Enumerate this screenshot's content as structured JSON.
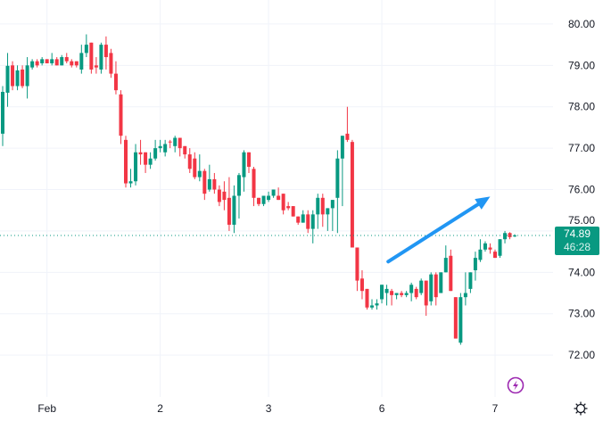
{
  "chart_data": {
    "type": "candlestick",
    "ylim": [
      70.99,
      80.58
    ],
    "yticks": [
      "72.00",
      "73.00",
      "74.00",
      "75.00",
      "76.00",
      "77.00",
      "78.00",
      "79.00",
      "80.00"
    ],
    "xticks": [
      {
        "label": "Feb",
        "index": 9
      },
      {
        "label": "2",
        "index": 32
      },
      {
        "label": "3",
        "index": 54
      },
      {
        "label": "6",
        "index": 77
      },
      {
        "label": "7",
        "index": 100
      }
    ],
    "grid": true,
    "colors": {
      "up": "#089981",
      "down": "#f23645",
      "grid": "#f0f3fa",
      "annotation": "#2196f3"
    },
    "last_price": "74.89",
    "countdown": "46:28",
    "annotation": {
      "type": "arrow",
      "from": {
        "index": 78.3,
        "price": 74.26
      },
      "to": {
        "index": 99,
        "price": 75.83
      }
    },
    "ohlc": [
      [
        77.35,
        78.5,
        77.05,
        78.36
      ],
      [
        78.34,
        79.3,
        78.0,
        78.99
      ],
      [
        79.0,
        79.1,
        78.4,
        78.5
      ],
      [
        78.5,
        79.0,
        78.4,
        78.88
      ],
      [
        78.9,
        79.0,
        78.45,
        78.5
      ],
      [
        78.5,
        79.2,
        78.2,
        79.0
      ],
      [
        78.95,
        79.15,
        78.9,
        79.1
      ],
      [
        79.1,
        79.15,
        78.95,
        79.0
      ],
      [
        79.05,
        79.2,
        79.0,
        79.15
      ],
      [
        79.15,
        79.15,
        79.05,
        79.05
      ],
      [
        79.05,
        79.3,
        79.0,
        79.15
      ],
      [
        79.15,
        79.2,
        79.0,
        79.0
      ],
      [
        79.0,
        79.25,
        79.0,
        79.2
      ],
      [
        79.2,
        79.3,
        79.05,
        79.1
      ],
      [
        79.1,
        79.15,
        78.95,
        79.0
      ],
      [
        79.1,
        79.1,
        78.95,
        79.0
      ],
      [
        78.9,
        79.5,
        78.8,
        79.3
      ],
      [
        79.3,
        79.75,
        79.2,
        79.5
      ],
      [
        79.55,
        79.55,
        78.8,
        78.9
      ],
      [
        79.0,
        79.2,
        78.8,
        78.95
      ],
      [
        78.9,
        79.55,
        78.8,
        79.5
      ],
      [
        79.5,
        79.7,
        78.9,
        79.2
      ],
      [
        79.3,
        79.4,
        78.7,
        78.8
      ],
      [
        78.8,
        79.1,
        78.3,
        78.4
      ],
      [
        78.3,
        78.4,
        77.1,
        77.3
      ],
      [
        77.2,
        77.3,
        76.05,
        76.15
      ],
      [
        76.15,
        76.5,
        76.05,
        76.2
      ],
      [
        76.2,
        77.1,
        76.1,
        76.9
      ],
      [
        76.9,
        77.2,
        76.6,
        76.85
      ],
      [
        76.9,
        76.9,
        76.4,
        76.6
      ],
      [
        76.6,
        76.9,
        76.5,
        76.75
      ],
      [
        76.75,
        77.2,
        76.7,
        77.0
      ],
      [
        77.0,
        77.2,
        76.9,
        77.05
      ],
      [
        76.9,
        77.2,
        76.8,
        77.1
      ],
      [
        77.16,
        77.2,
        77.0,
        77.14
      ],
      [
        77.05,
        77.3,
        76.9,
        77.25
      ],
      [
        77.25,
        77.25,
        76.8,
        77.0
      ],
      [
        77.05,
        77.05,
        76.75,
        76.85
      ],
      [
        76.85,
        77.0,
        76.4,
        76.5
      ],
      [
        76.75,
        76.9,
        76.25,
        76.3
      ],
      [
        76.3,
        76.85,
        76.2,
        76.45
      ],
      [
        76.45,
        76.5,
        75.75,
        75.9
      ],
      [
        76.0,
        76.6,
        75.95,
        76.25
      ],
      [
        76.25,
        76.4,
        75.9,
        76.0
      ],
      [
        76.0,
        76.1,
        75.6,
        75.7
      ],
      [
        75.95,
        76.2,
        75.5,
        75.75
      ],
      [
        75.8,
        76.3,
        75.0,
        75.15
      ],
      [
        75.15,
        76.1,
        74.95,
        75.85
      ],
      [
        75.85,
        76.4,
        75.3,
        76.35
      ],
      [
        76.3,
        76.95,
        75.95,
        76.9
      ],
      [
        76.9,
        76.9,
        76.4,
        76.55
      ],
      [
        76.5,
        76.55,
        75.6,
        75.8
      ],
      [
        75.8,
        75.8,
        75.6,
        75.65
      ],
      [
        75.65,
        75.85,
        75.6,
        75.85
      ],
      [
        75.75,
        75.95,
        75.7,
        75.85
      ],
      [
        75.85,
        76.0,
        75.8,
        76.0
      ],
      [
        75.85,
        76.05,
        75.75,
        75.75
      ],
      [
        75.9,
        75.9,
        75.4,
        75.5
      ],
      [
        75.6,
        75.7,
        75.5,
        75.55
      ],
      [
        75.6,
        75.6,
        75.35,
        75.35
      ],
      [
        75.35,
        75.35,
        75.15,
        75.2
      ],
      [
        75.2,
        75.5,
        75.2,
        75.4
      ],
      [
        75.4,
        75.5,
        74.95,
        75.05
      ],
      [
        75.05,
        75.5,
        74.7,
        75.4
      ],
      [
        75.4,
        75.9,
        75.05,
        75.8
      ],
      [
        75.8,
        75.9,
        75.1,
        75.4
      ],
      [
        75.4,
        75.55,
        75.0,
        75.55
      ],
      [
        75.55,
        75.75,
        75.0,
        75.75
      ],
      [
        75.8,
        76.95,
        74.95,
        76.75
      ],
      [
        76.75,
        77.3,
        75.6,
        77.3
      ],
      [
        77.35,
        78.0,
        77.15,
        77.2
      ],
      [
        77.15,
        77.2,
        74.6,
        74.6
      ],
      [
        74.6,
        74.6,
        73.55,
        73.8
      ],
      [
        73.85,
        74.05,
        73.35,
        73.55
      ],
      [
        73.6,
        73.6,
        73.1,
        73.15
      ],
      [
        73.15,
        73.35,
        73.1,
        73.2
      ],
      [
        73.2,
        73.35,
        73.1,
        73.25
      ],
      [
        73.35,
        73.7,
        73.25,
        73.7
      ],
      [
        73.5,
        73.7,
        73.2,
        73.6
      ],
      [
        73.55,
        73.6,
        73.2,
        73.45
      ],
      [
        73.45,
        73.5,
        73.35,
        73.5
      ],
      [
        73.5,
        73.55,
        73.4,
        73.45
      ],
      [
        73.45,
        73.55,
        73.4,
        73.5
      ],
      [
        73.5,
        73.75,
        73.3,
        73.7
      ],
      [
        73.6,
        73.65,
        73.35,
        73.4
      ],
      [
        73.5,
        73.85,
        73.45,
        73.8
      ],
      [
        73.8,
        73.8,
        72.95,
        73.2
      ],
      [
        73.3,
        74.0,
        73.2,
        73.95
      ],
      [
        73.95,
        74.0,
        73.2,
        73.4
      ],
      [
        73.5,
        74.0,
        73.5,
        74.0
      ],
      [
        74.0,
        74.65,
        74.0,
        74.35
      ],
      [
        74.4,
        74.55,
        73.55,
        73.55
      ],
      [
        73.4,
        73.4,
        72.4,
        72.4
      ],
      [
        72.3,
        73.5,
        72.25,
        73.4
      ],
      [
        73.4,
        74.0,
        73.2,
        73.5
      ],
      [
        73.6,
        74.0,
        73.5,
        74.0
      ],
      [
        74.05,
        74.5,
        73.8,
        74.35
      ],
      [
        74.3,
        74.8,
        74.25,
        74.55
      ],
      [
        74.55,
        74.75,
        74.5,
        74.7
      ],
      [
        74.6,
        74.7,
        74.45,
        74.55
      ],
      [
        74.5,
        74.55,
        74.35,
        74.35
      ],
      [
        74.4,
        74.8,
        74.35,
        74.8
      ],
      [
        74.8,
        75.0,
        74.7,
        74.95
      ],
      [
        74.95,
        74.97,
        74.8,
        74.85
      ],
      [
        74.87,
        74.92,
        74.85,
        74.89
      ]
    ]
  },
  "icons": {
    "lightning": "lightning-icon",
    "settings": "gear-icon"
  }
}
